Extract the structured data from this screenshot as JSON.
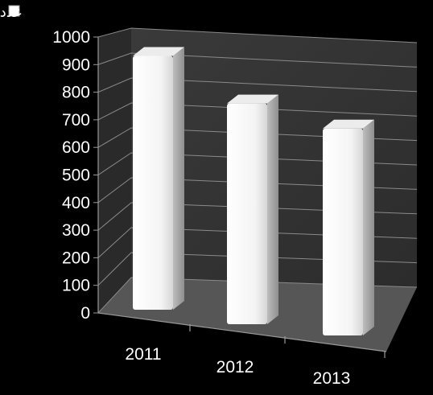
{
  "chart_data": {
    "type": "bar",
    "categories": [
      "2011",
      "2012",
      "2013"
    ],
    "series": [
      {
        "name": "عدد المخالفات",
        "values": [
          920,
          800,
          750
        ]
      }
    ],
    "ylim": [
      0,
      1000
    ],
    "yticks": [
      "0",
      "100",
      "200",
      "300",
      "400",
      "500",
      "600",
      "700",
      "800",
      "900",
      "1000"
    ],
    "grid": true,
    "legend": "top-left",
    "style": "3d",
    "colors": {
      "background": "#000000",
      "back_wall": "#363636",
      "floor": "#555555",
      "grid": "#8a8a8a",
      "bar": "#ffffff",
      "text": "#ffffff"
    }
  }
}
